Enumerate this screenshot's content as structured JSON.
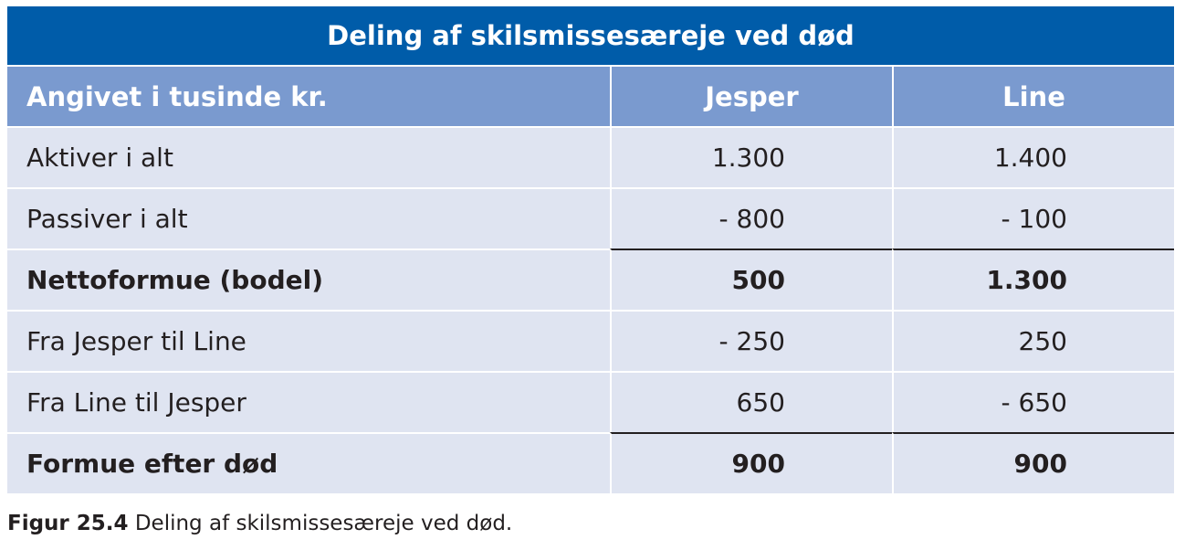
{
  "table": {
    "title": "Deling af skilsmissesæreje ved død",
    "header": {
      "label": "Angivet i tusinde kr.",
      "col1": "Jesper",
      "col2": "Line"
    },
    "rows": [
      {
        "label": "Aktiver i alt",
        "jesper": "1.300",
        "line": "1.400"
      },
      {
        "label": "Passiver i alt",
        "jesper": "- 800",
        "line": "- 100"
      },
      {
        "label": "Nettoformue (bodel)",
        "jesper": "500",
        "line": "1.300"
      },
      {
        "label": "Fra Jesper til Line",
        "jesper": "- 250",
        "line": "250"
      },
      {
        "label": "Fra Line til Jesper",
        "jesper": "650",
        "line": "- 650"
      },
      {
        "label": "Formue efter død",
        "jesper": "900",
        "line": "900"
      }
    ]
  },
  "caption": {
    "label": "Figur 25.4",
    "text": "Deling af skilsmissesæreje ved død."
  },
  "colors": {
    "title_bar": "#005ca9",
    "header_row": "#7a9acf",
    "body_row": "#dfe4f1",
    "text": "#231f20"
  }
}
